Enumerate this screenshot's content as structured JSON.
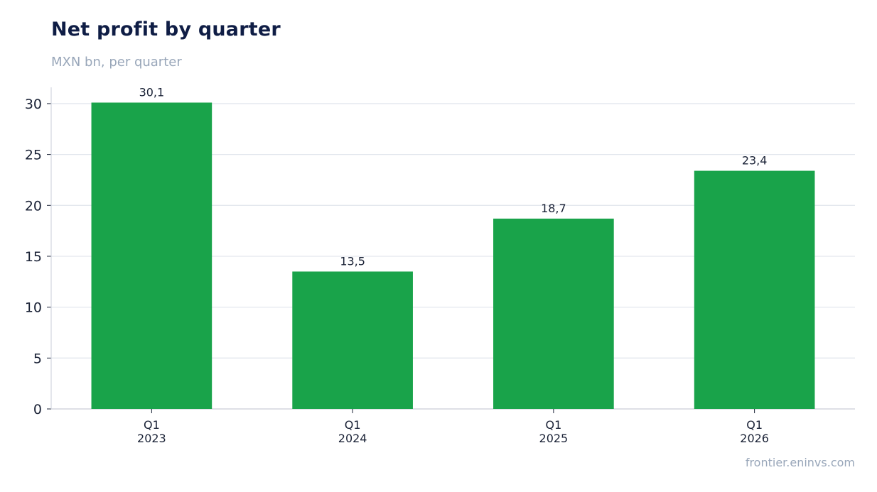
{
  "header": {
    "title": "Net profit by quarter",
    "subtitle": "MXN bn, per quarter"
  },
  "footer": {
    "source": "frontier.eninvs.com"
  },
  "colors": {
    "bar": "#19a34a",
    "grid": "#e3e7ee",
    "axis": "#c9ced8",
    "title": "#0f1d45",
    "muted": "#98a6b9"
  },
  "chart_data": {
    "type": "bar",
    "title": "Net profit by quarter",
    "subtitle": "MXN bn, per quarter",
    "categories": [
      [
        "Q1",
        "2023"
      ],
      [
        "Q1",
        "2024"
      ],
      [
        "Q1",
        "2025"
      ],
      [
        "Q1",
        "2026"
      ]
    ],
    "values": [
      30.1,
      13.5,
      18.7,
      23.4
    ],
    "data_labels": [
      "30,1",
      "13,5",
      "18,7",
      "23,4"
    ],
    "yticks": [
      0,
      5,
      10,
      15,
      20,
      25,
      30
    ],
    "ylim": [
      0,
      31.6
    ],
    "grid": true,
    "xlabel": "",
    "ylabel": ""
  }
}
